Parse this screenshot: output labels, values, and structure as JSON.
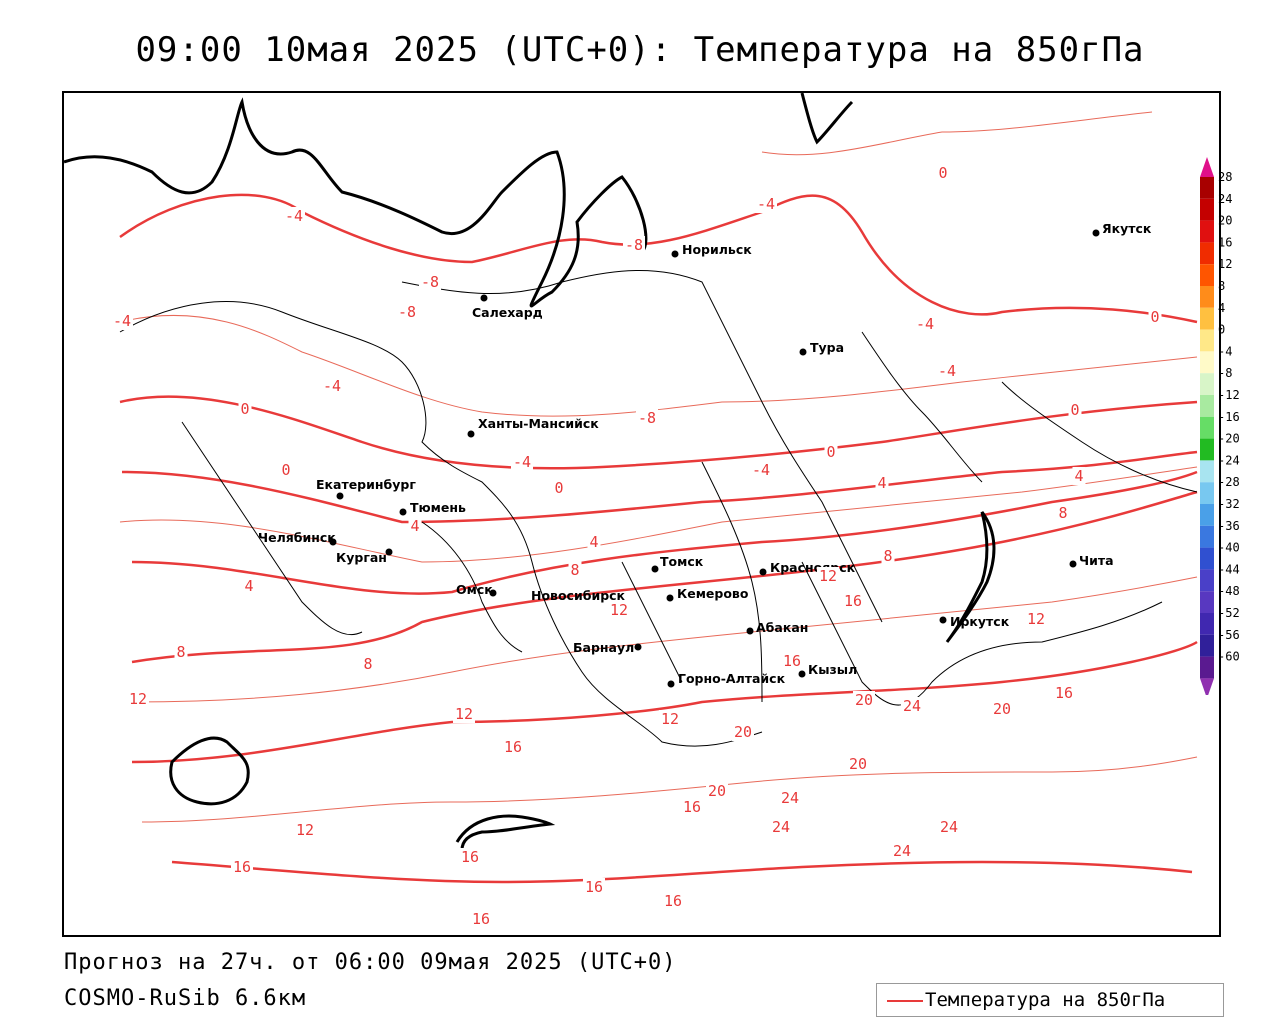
{
  "title": "09:00 10мая 2025 (UTC+0): Температура на 850гПа",
  "footer": {
    "forecast": "Прогноз на 27ч. от 06:00 09мая 2025 (UTC+0)",
    "model": "COSMO-RuSib 6.6км"
  },
  "legend": {
    "label": "Температура на 850гПа",
    "line_color": "#e83a3a"
  },
  "colorbar": {
    "levels": [
      "28",
      "24",
      "20",
      "16",
      "12",
      "8",
      "4",
      "0",
      "-4",
      "-8",
      "-12",
      "-16",
      "-20",
      "-24",
      "-28",
      "-32",
      "-36",
      "-40",
      "-44",
      "-48",
      "-52",
      "-56",
      "-60"
    ],
    "colors": [
      "#a80000",
      "#c40000",
      "#e01010",
      "#f02c00",
      "#ff5500",
      "#ff8c1a",
      "#ffc040",
      "#ffe888",
      "#fffac8",
      "#d8f5c8",
      "#a8eaa0",
      "#66dd66",
      "#22bb22",
      "#a8e4f0",
      "#78c8f0",
      "#4aa0e8",
      "#3a78e0",
      "#3050d0",
      "#4a40c8",
      "#5838c0",
      "#4028b0",
      "#30209a",
      "#5a1a90"
    ],
    "top_arrow": "#e0108a",
    "bottom_arrow": "#9030b0"
  },
  "cities": [
    {
      "name": "Якутск"
    },
    {
      "name": "Норильск"
    },
    {
      "name": "Салехард"
    },
    {
      "name": "Тура"
    },
    {
      "name": "Ханты-Мансийск"
    },
    {
      "name": "Екатеринбург"
    },
    {
      "name": "Тюмень"
    },
    {
      "name": "Челябинск"
    },
    {
      "name": "Курган"
    },
    {
      "name": "Омск"
    },
    {
      "name": "Томск"
    },
    {
      "name": "Красноярск"
    },
    {
      "name": "Новосибирск"
    },
    {
      "name": "Кемерово"
    },
    {
      "name": "Абакан"
    },
    {
      "name": "Барнаул"
    },
    {
      "name": "Горно-Алтайск"
    },
    {
      "name": "Кызыл"
    },
    {
      "name": "Иркутск"
    },
    {
      "name": "Чита"
    }
  ],
  "contour_labels": [
    "-4",
    "-8",
    "-8",
    "-4",
    "-4",
    "-8",
    "-4",
    "-4",
    "-8",
    "-4",
    "-4",
    "-4",
    "0",
    "0",
    "0",
    "0",
    "0",
    "0",
    "0",
    "4",
    "4",
    "4",
    "4",
    "4",
    "8",
    "8",
    "8",
    "8",
    "8",
    "12",
    "12",
    "12",
    "12",
    "12",
    "12",
    "12",
    "16",
    "16",
    "16",
    "16",
    "16",
    "16",
    "16",
    "16",
    "16",
    "16",
    "20",
    "20",
    "20",
    "20",
    "24",
    "24",
    "24",
    "24",
    "24",
    "20"
  ]
}
